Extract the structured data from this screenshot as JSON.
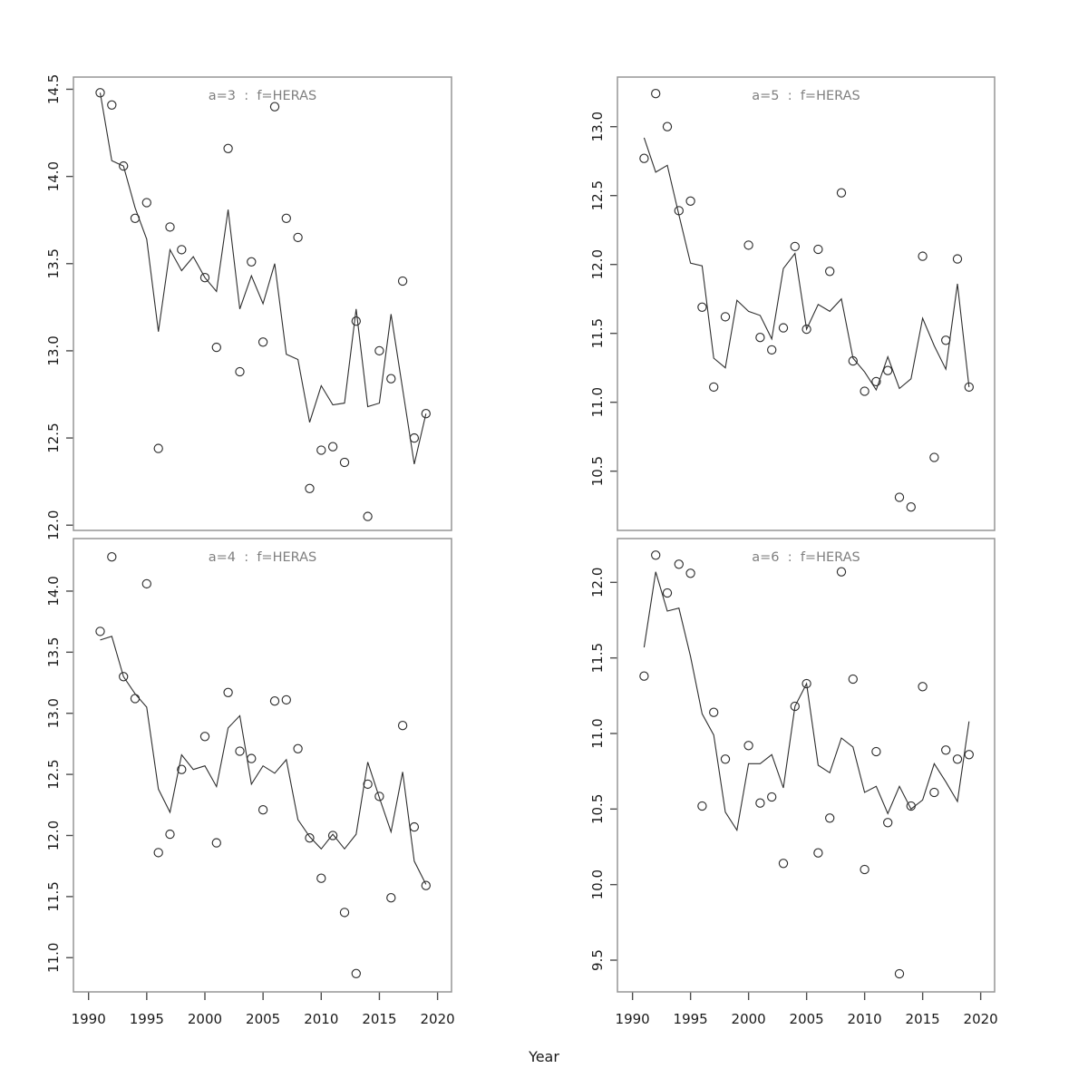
{
  "figure": {
    "xlabel": "Year",
    "background": "#ffffff",
    "frame_color": "#959595",
    "tick_color": "#4d4d4d",
    "tick_label_color": "#1a1a1a",
    "title_color": "#7f7f7f",
    "line_color": "#2e2e2e",
    "point_color": "#2e2e2e",
    "grid": false,
    "layout": "2x2 lattice, shared x axis 1990-2020"
  },
  "chart_data": [
    {
      "type": "scatter",
      "position": "top-left",
      "title": "a=3  :  f=HERAS",
      "xlabel": "Year",
      "x_ticks": [
        1990,
        1995,
        2000,
        2005,
        2010,
        2015,
        2020
      ],
      "x_range": [
        1988.7,
        2021.2
      ],
      "y_ticks": [
        12.0,
        12.5,
        13.0,
        13.5,
        14.0,
        14.5
      ],
      "y_range": [
        11.97,
        14.57
      ],
      "series": [
        {
          "name": "observed-index-points",
          "style": "open-circles",
          "x": [
            1991,
            1992,
            1993,
            1994,
            1995,
            1996,
            1997,
            1998,
            2000,
            2001,
            2002,
            2003,
            2004,
            2005,
            2006,
            2007,
            2008,
            2009,
            2010,
            2011,
            2012,
            2013,
            2014,
            2015,
            2016,
            2017,
            2018,
            2019
          ],
          "y": [
            14.48,
            14.41,
            14.06,
            13.76,
            13.85,
            12.44,
            13.71,
            13.58,
            13.42,
            13.02,
            14.16,
            12.88,
            13.51,
            13.05,
            14.4,
            13.76,
            13.65,
            12.21,
            12.43,
            12.45,
            12.36,
            13.17,
            12.05,
            13.0,
            12.84,
            13.4,
            12.5,
            12.64
          ]
        },
        {
          "name": "fitted-line",
          "style": "line",
          "x": [
            1991,
            1992,
            1993,
            1994,
            1995,
            1996,
            1997,
            1998,
            1999,
            2000,
            2001,
            2002,
            2003,
            2004,
            2005,
            2006,
            2007,
            2008,
            2009,
            2010,
            2011,
            2012,
            2013,
            2014,
            2015,
            2016,
            2017,
            2018,
            2019
          ],
          "y": [
            14.48,
            14.09,
            14.06,
            13.82,
            13.64,
            13.11,
            13.58,
            13.46,
            13.54,
            13.42,
            13.34,
            13.81,
            13.24,
            13.43,
            13.27,
            13.5,
            12.98,
            12.95,
            12.59,
            12.8,
            12.69,
            12.7,
            13.24,
            12.68,
            12.7,
            13.21,
            12.78,
            12.35,
            12.64
          ]
        }
      ]
    },
    {
      "type": "scatter",
      "position": "top-right",
      "title": "a=5  :  f=HERAS",
      "xlabel": "Year",
      "x_ticks": [
        1990,
        1995,
        2000,
        2005,
        2010,
        2015,
        2020
      ],
      "x_range": [
        1988.7,
        2021.2
      ],
      "y_ticks": [
        10.5,
        11.0,
        11.5,
        12.0,
        12.5,
        13.0
      ],
      "y_range": [
        10.07,
        13.36
      ],
      "series": [
        {
          "name": "observed-index-points",
          "style": "open-circles",
          "x": [
            1991,
            1992,
            1993,
            1994,
            1995,
            1996,
            1997,
            1998,
            2000,
            2001,
            2002,
            2003,
            2004,
            2005,
            2006,
            2007,
            2008,
            2009,
            2010,
            2011,
            2012,
            2013,
            2014,
            2015,
            2016,
            2017,
            2018,
            2019
          ],
          "y": [
            12.77,
            13.24,
            13.0,
            12.39,
            12.46,
            11.69,
            11.11,
            11.62,
            12.14,
            11.47,
            11.38,
            11.54,
            12.13,
            11.53,
            12.11,
            11.95,
            12.52,
            11.3,
            11.08,
            11.15,
            11.23,
            10.31,
            10.24,
            12.06,
            10.6,
            11.45,
            12.04,
            11.11
          ]
        },
        {
          "name": "fitted-line",
          "style": "line",
          "x": [
            1991,
            1992,
            1993,
            1994,
            1995,
            1996,
            1997,
            1998,
            1999,
            2000,
            2001,
            2002,
            2003,
            2004,
            2005,
            2006,
            2007,
            2008,
            2009,
            2010,
            2011,
            2012,
            2013,
            2014,
            2015,
            2016,
            2017,
            2018,
            2019
          ],
          "y": [
            12.92,
            12.67,
            12.72,
            12.36,
            12.01,
            11.99,
            11.32,
            11.25,
            11.74,
            11.66,
            11.63,
            11.46,
            11.97,
            12.08,
            11.53,
            11.71,
            11.66,
            11.75,
            11.32,
            11.22,
            11.09,
            11.33,
            11.1,
            11.17,
            11.61,
            11.41,
            11.24,
            11.86,
            11.11
          ]
        }
      ]
    },
    {
      "type": "scatter",
      "position": "bottom-left",
      "title": "a=4  :  f=HERAS",
      "xlabel": "Year",
      "x_ticks": [
        1990,
        1995,
        2000,
        2005,
        2010,
        2015,
        2020
      ],
      "x_range": [
        1988.7,
        2021.2
      ],
      "y_ticks": [
        11.0,
        11.5,
        12.0,
        12.5,
        13.0,
        13.5,
        14.0
      ],
      "y_range": [
        10.72,
        14.43
      ],
      "series": [
        {
          "name": "observed-index-points",
          "style": "open-circles",
          "x": [
            1991,
            1992,
            1993,
            1994,
            1995,
            1996,
            1997,
            1998,
            2000,
            2001,
            2002,
            2003,
            2004,
            2005,
            2006,
            2007,
            2008,
            2009,
            2010,
            2011,
            2012,
            2013,
            2014,
            2015,
            2016,
            2017,
            2018,
            2019
          ],
          "y": [
            13.67,
            14.28,
            13.3,
            13.12,
            14.06,
            11.86,
            12.01,
            12.54,
            12.81,
            11.94,
            13.17,
            12.69,
            12.63,
            12.21,
            13.1,
            13.11,
            12.71,
            11.98,
            11.65,
            12.0,
            11.37,
            10.87,
            12.42,
            12.32,
            11.49,
            12.9,
            12.07,
            11.59
          ]
        },
        {
          "name": "fitted-line",
          "style": "line",
          "x": [
            1991,
            1992,
            1993,
            1994,
            1995,
            1996,
            1997,
            1998,
            1999,
            2000,
            2001,
            2002,
            2003,
            2004,
            2005,
            2006,
            2007,
            2008,
            2009,
            2010,
            2011,
            2012,
            2013,
            2014,
            2015,
            2016,
            2017,
            2018,
            2019
          ],
          "y": [
            13.6,
            13.63,
            13.3,
            13.16,
            13.05,
            12.38,
            12.19,
            12.66,
            12.54,
            12.57,
            12.4,
            12.88,
            12.98,
            12.42,
            12.57,
            12.51,
            12.62,
            12.13,
            11.99,
            11.89,
            12.01,
            11.89,
            12.01,
            12.6,
            12.31,
            12.03,
            12.52,
            11.79,
            11.6
          ]
        }
      ]
    },
    {
      "type": "scatter",
      "position": "bottom-right",
      "title": "a=6  :  f=HERAS",
      "xlabel": "Year",
      "x_ticks": [
        1990,
        1995,
        2000,
        2005,
        2010,
        2015,
        2020
      ],
      "x_range": [
        1988.7,
        2021.2
      ],
      "y_ticks": [
        9.5,
        10.0,
        10.5,
        11.0,
        11.5,
        12.0
      ],
      "y_range": [
        9.29,
        12.29
      ],
      "series": [
        {
          "name": "observed-index-points",
          "style": "open-circles",
          "x": [
            1991,
            1992,
            1993,
            1994,
            1995,
            1996,
            1997,
            1998,
            2000,
            2001,
            2002,
            2003,
            2004,
            2005,
            2006,
            2007,
            2008,
            2009,
            2010,
            2011,
            2012,
            2013,
            2014,
            2015,
            2016,
            2017,
            2018,
            2019
          ],
          "y": [
            11.38,
            12.18,
            11.93,
            12.12,
            12.06,
            10.52,
            11.14,
            10.83,
            10.92,
            10.54,
            10.58,
            10.14,
            11.18,
            11.33,
            10.21,
            10.44,
            12.07,
            11.36,
            10.1,
            10.88,
            10.41,
            9.41,
            10.52,
            11.31,
            10.61,
            10.89,
            10.83,
            10.86
          ]
        },
        {
          "name": "fitted-line",
          "style": "line",
          "x": [
            1991,
            1992,
            1993,
            1994,
            1995,
            1996,
            1997,
            1998,
            1999,
            2000,
            2001,
            2002,
            2003,
            2004,
            2005,
            2006,
            2007,
            2008,
            2009,
            2010,
            2011,
            2012,
            2013,
            2014,
            2015,
            2016,
            2017,
            2018,
            2019
          ],
          "y": [
            11.57,
            12.07,
            11.81,
            11.83,
            11.51,
            11.13,
            10.99,
            10.48,
            10.36,
            10.8,
            10.8,
            10.86,
            10.64,
            11.18,
            11.33,
            10.79,
            10.74,
            10.97,
            10.91,
            10.61,
            10.65,
            10.47,
            10.65,
            10.5,
            10.56,
            10.8,
            10.68,
            10.55,
            11.08
          ]
        }
      ]
    }
  ]
}
